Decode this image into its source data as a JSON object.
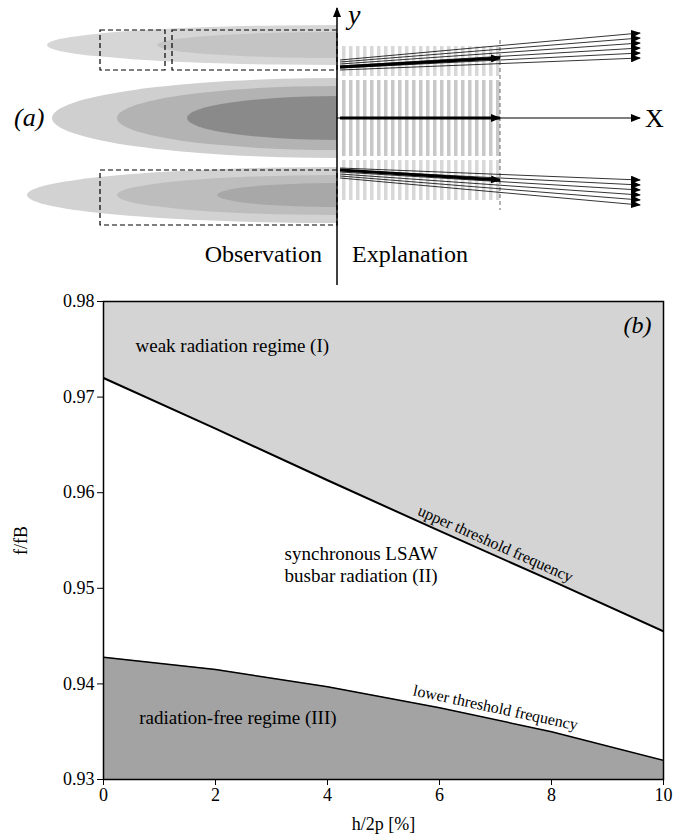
{
  "diagram": {
    "panel_label": "(a)",
    "y_axis": "y",
    "x_axis": "X",
    "left_caption": "Observation",
    "right_caption": "Explanation"
  },
  "chart_data": {
    "type": "area",
    "panel_label": "(b)",
    "xlabel": "h/2p [%]",
    "ylabel": "f/fB",
    "x": [
      0,
      2,
      4,
      6,
      8,
      10
    ],
    "series": [
      {
        "name": "upper threshold frequency",
        "color": "#000000",
        "values": [
          0.972,
          0.9667,
          0.9613,
          0.956,
          0.9508,
          0.9455
        ]
      },
      {
        "name": "lower threshold frequency",
        "color": "#000000",
        "values": [
          0.9428,
          0.9415,
          0.9397,
          0.9375,
          0.935,
          0.932
        ]
      }
    ],
    "annotations": [
      {
        "text": "weak radiation regime (I)",
        "x": 2.3,
        "y": 0.9755
      },
      {
        "text": "synchronous LSAW\nbusbar radiation (II)",
        "x": 4.6,
        "y": 0.9525
      },
      {
        "text": "radiation-free regime (III)",
        "x": 2.4,
        "y": 0.9365
      }
    ],
    "xlim": [
      0,
      10
    ],
    "ylim": [
      0.93,
      0.98
    ],
    "xticks": [
      0,
      2,
      4,
      6,
      8,
      10
    ],
    "yticks": [
      0.93,
      0.94,
      0.95,
      0.96,
      0.97,
      0.98
    ],
    "grid": false
  }
}
